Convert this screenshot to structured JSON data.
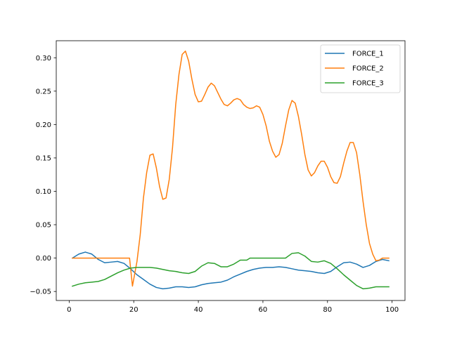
{
  "chart_data": {
    "type": "line",
    "title": "",
    "xlabel": "",
    "ylabel": "",
    "xlim": [
      -4,
      104
    ],
    "ylim": [
      -0.0635,
      0.3255
    ],
    "xticks": [
      0,
      20,
      40,
      60,
      80,
      100
    ],
    "yticks": [
      -0.05,
      0.0,
      0.05,
      0.1,
      0.15,
      0.2,
      0.25,
      0.3
    ],
    "xtick_labels": [
      "0",
      "20",
      "40",
      "60",
      "80",
      "100"
    ],
    "ytick_labels": [
      "−0.05",
      "0.00",
      "0.05",
      "0.10",
      "0.15",
      "0.20",
      "0.25",
      "0.30"
    ],
    "grid": false,
    "legend_position": "top-right",
    "series": [
      {
        "name": "FORCE_1",
        "color": "#1f77b4",
        "points": [
          [
            1,
            0
          ],
          [
            3,
            0.006
          ],
          [
            5,
            0.009
          ],
          [
            7,
            0.006
          ],
          [
            9,
            -0.002
          ],
          [
            11,
            -0.007
          ],
          [
            13,
            -0.006
          ],
          [
            15,
            -0.005
          ],
          [
            17,
            -0.008
          ],
          [
            19,
            -0.016
          ],
          [
            21,
            -0.025
          ],
          [
            23,
            -0.032
          ],
          [
            25,
            -0.039
          ],
          [
            27,
            -0.044
          ],
          [
            29,
            -0.046
          ],
          [
            31,
            -0.045
          ],
          [
            33,
            -0.043
          ],
          [
            35,
            -0.043
          ],
          [
            37,
            -0.044
          ],
          [
            39,
            -0.043
          ],
          [
            41,
            -0.04
          ],
          [
            43,
            -0.038
          ],
          [
            45,
            -0.037
          ],
          [
            47,
            -0.036
          ],
          [
            49,
            -0.033
          ],
          [
            51,
            -0.028
          ],
          [
            53,
            -0.024
          ],
          [
            55,
            -0.02
          ],
          [
            57,
            -0.017
          ],
          [
            59,
            -0.015
          ],
          [
            61,
            -0.014
          ],
          [
            63,
            -0.014
          ],
          [
            65,
            -0.013
          ],
          [
            67,
            -0.014
          ],
          [
            69,
            -0.016
          ],
          [
            71,
            -0.018
          ],
          [
            73,
            -0.019
          ],
          [
            75,
            -0.02
          ],
          [
            77,
            -0.022
          ],
          [
            79,
            -0.023
          ],
          [
            81,
            -0.02
          ],
          [
            83,
            -0.013
          ],
          [
            85,
            -0.007
          ],
          [
            87,
            -0.006
          ],
          [
            89,
            -0.009
          ],
          [
            91,
            -0.014
          ],
          [
            93,
            -0.011
          ],
          [
            95,
            -0.005
          ],
          [
            97,
            -0.002
          ],
          [
            99,
            -0.004
          ]
        ]
      },
      {
        "name": "FORCE_2",
        "color": "#ff7f0e",
        "points": [
          [
            1,
            0
          ],
          [
            3,
            0
          ],
          [
            5,
            0
          ],
          [
            7,
            0
          ],
          [
            9,
            0
          ],
          [
            11,
            0
          ],
          [
            13,
            0
          ],
          [
            15,
            0
          ],
          [
            17,
            0
          ],
          [
            18.7,
            0
          ],
          [
            19.6,
            -0.042
          ],
          [
            21,
            -0.005
          ],
          [
            22,
            0.035
          ],
          [
            23,
            0.09
          ],
          [
            24,
            0.128
          ],
          [
            25,
            0.154
          ],
          [
            26,
            0.156
          ],
          [
            27,
            0.135
          ],
          [
            28,
            0.107
          ],
          [
            29,
            0.088
          ],
          [
            30,
            0.09
          ],
          [
            31,
            0.118
          ],
          [
            32,
            0.165
          ],
          [
            33,
            0.23
          ],
          [
            34,
            0.275
          ],
          [
            35,
            0.305
          ],
          [
            36,
            0.31
          ],
          [
            37,
            0.295
          ],
          [
            38,
            0.268
          ],
          [
            39,
            0.245
          ],
          [
            40,
            0.234
          ],
          [
            41,
            0.235
          ],
          [
            42,
            0.245
          ],
          [
            43,
            0.256
          ],
          [
            44,
            0.262
          ],
          [
            45,
            0.258
          ],
          [
            46,
            0.248
          ],
          [
            47,
            0.238
          ],
          [
            48,
            0.23
          ],
          [
            49,
            0.228
          ],
          [
            50,
            0.232
          ],
          [
            51,
            0.237
          ],
          [
            52,
            0.239
          ],
          [
            53,
            0.237
          ],
          [
            54,
            0.23
          ],
          [
            55,
            0.226
          ],
          [
            56,
            0.224
          ],
          [
            57,
            0.225
          ],
          [
            58,
            0.228
          ],
          [
            59,
            0.226
          ],
          [
            60,
            0.215
          ],
          [
            61,
            0.198
          ],
          [
            62,
            0.175
          ],
          [
            63,
            0.16
          ],
          [
            64,
            0.151
          ],
          [
            65,
            0.155
          ],
          [
            66,
            0.172
          ],
          [
            67,
            0.198
          ],
          [
            68,
            0.222
          ],
          [
            69,
            0.236
          ],
          [
            70,
            0.232
          ],
          [
            71,
            0.212
          ],
          [
            72,
            0.185
          ],
          [
            73,
            0.155
          ],
          [
            74,
            0.132
          ],
          [
            75,
            0.123
          ],
          [
            76,
            0.128
          ],
          [
            77,
            0.138
          ],
          [
            78,
            0.145
          ],
          [
            79,
            0.145
          ],
          [
            80,
            0.136
          ],
          [
            81,
            0.122
          ],
          [
            82,
            0.113
          ],
          [
            83,
            0.112
          ],
          [
            84,
            0.122
          ],
          [
            85,
            0.142
          ],
          [
            86,
            0.16
          ],
          [
            87,
            0.173
          ],
          [
            88,
            0.173
          ],
          [
            89,
            0.158
          ],
          [
            90,
            0.125
          ],
          [
            91,
            0.085
          ],
          [
            92,
            0.05
          ],
          [
            93,
            0.022
          ],
          [
            94,
            0.006
          ],
          [
            95,
            -0.004
          ],
          [
            96,
            -0.003
          ],
          [
            97,
            0
          ],
          [
            98,
            0
          ],
          [
            99,
            0
          ]
        ]
      },
      {
        "name": "FORCE_3",
        "color": "#2ca02c",
        "points": [
          [
            1,
            -0.042
          ],
          [
            3,
            -0.039
          ],
          [
            5,
            -0.037
          ],
          [
            7,
            -0.036
          ],
          [
            9,
            -0.035
          ],
          [
            11,
            -0.032
          ],
          [
            13,
            -0.027
          ],
          [
            15,
            -0.022
          ],
          [
            17,
            -0.018
          ],
          [
            19,
            -0.015
          ],
          [
            21,
            -0.014
          ],
          [
            23,
            -0.014
          ],
          [
            25,
            -0.014
          ],
          [
            27,
            -0.015
          ],
          [
            29,
            -0.017
          ],
          [
            31,
            -0.019
          ],
          [
            33,
            -0.02
          ],
          [
            35,
            -0.022
          ],
          [
            37,
            -0.023
          ],
          [
            39,
            -0.02
          ],
          [
            41,
            -0.012
          ],
          [
            43,
            -0.007
          ],
          [
            45,
            -0.008
          ],
          [
            47,
            -0.013
          ],
          [
            49,
            -0.013
          ],
          [
            51,
            -0.009
          ],
          [
            53,
            -0.003
          ],
          [
            55,
            -0.003
          ],
          [
            56,
            0
          ],
          [
            58,
            0
          ],
          [
            60,
            0
          ],
          [
            62,
            0
          ],
          [
            64,
            0
          ],
          [
            66,
            0
          ],
          [
            67,
            0
          ],
          [
            69,
            0.007
          ],
          [
            71,
            0.008
          ],
          [
            73,
            0.003
          ],
          [
            75,
            -0.005
          ],
          [
            77,
            -0.006
          ],
          [
            79,
            -0.004
          ],
          [
            81,
            -0.008
          ],
          [
            83,
            -0.016
          ],
          [
            85,
            -0.025
          ],
          [
            87,
            -0.033
          ],
          [
            89,
            -0.041
          ],
          [
            91,
            -0.046
          ],
          [
            93,
            -0.045
          ],
          [
            95,
            -0.043
          ],
          [
            97,
            -0.043
          ],
          [
            99,
            -0.043
          ]
        ]
      }
    ]
  }
}
